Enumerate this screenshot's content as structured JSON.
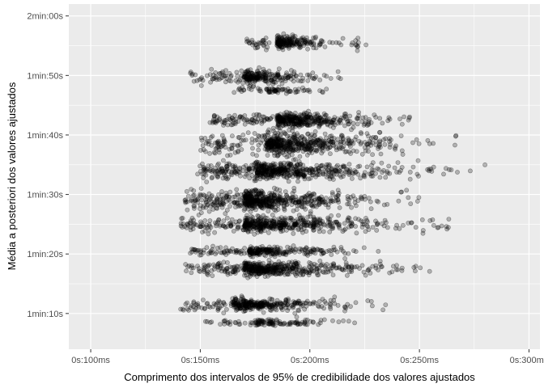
{
  "chart_data": {
    "type": "scatter",
    "title": "",
    "xlabel": "Comprimento dos intervalos de 95% de credibilidade dos valores ajustados",
    "ylabel": "Média a posteriori dos valores ajustados",
    "x_unit": "ms",
    "y_unit": "s",
    "xlim": [
      90,
      305
    ],
    "ylim": [
      64,
      122
    ],
    "x_ticks": [
      {
        "value": 100,
        "label": "0s:100ms"
      },
      {
        "value": 150,
        "label": "0s:150ms"
      },
      {
        "value": 200,
        "label": "0s:200ms"
      },
      {
        "value": 250,
        "label": "0s:250ms"
      },
      {
        "value": 300,
        "label": "0s:300ms"
      }
    ],
    "y_ticks": [
      {
        "value": 70,
        "label": "1min:10s"
      },
      {
        "value": 80,
        "label": "1min:20s"
      },
      {
        "value": 90,
        "label": "1min:30s"
      },
      {
        "value": 100,
        "label": "1min:40s"
      },
      {
        "value": 110,
        "label": "1min:50s"
      },
      {
        "value": 120,
        "label": "2min:00s"
      }
    ],
    "grid": true,
    "point_color": "#000000",
    "point_alpha": 0.25,
    "series": [
      {
        "clusters": [
          {
            "y_center": 115.5,
            "y_spread": 1.4,
            "x_min": 171,
            "x_max": 234,
            "x_peak": 185,
            "count": 220
          },
          {
            "y_center": 109.8,
            "y_spread": 1.6,
            "x_min": 144,
            "x_max": 227,
            "x_peak": 170,
            "count": 260
          },
          {
            "y_center": 107.5,
            "y_spread": 0.6,
            "x_min": 165,
            "x_max": 220,
            "x_peak": 180,
            "count": 70
          },
          {
            "y_center": 102.5,
            "y_spread": 1.4,
            "x_min": 153,
            "x_max": 260,
            "x_peak": 185,
            "count": 420
          },
          {
            "y_center": 98.5,
            "y_spread": 2.2,
            "x_min": 150,
            "x_max": 280,
            "x_peak": 180,
            "count": 560
          },
          {
            "y_center": 94,
            "y_spread": 1.8,
            "x_min": 148,
            "x_max": 296,
            "x_peak": 175,
            "count": 560
          },
          {
            "y_center": 89,
            "y_spread": 2.0,
            "x_min": 143,
            "x_max": 262,
            "x_peak": 170,
            "count": 580
          },
          {
            "y_center": 85,
            "y_spread": 1.6,
            "x_min": 141,
            "x_max": 285,
            "x_peak": 170,
            "count": 520
          },
          {
            "y_center": 80.5,
            "y_spread": 1.0,
            "x_min": 145,
            "x_max": 240,
            "x_peak": 172,
            "count": 260
          },
          {
            "y_center": 77.5,
            "y_spread": 1.5,
            "x_min": 143,
            "x_max": 271,
            "x_peak": 170,
            "count": 480
          },
          {
            "y_center": 71.5,
            "y_spread": 1.3,
            "x_min": 141,
            "x_max": 247,
            "x_peak": 165,
            "count": 340
          },
          {
            "y_center": 68.5,
            "y_spread": 0.7,
            "x_min": 150,
            "x_max": 232,
            "x_peak": 175,
            "count": 120
          }
        ]
      }
    ]
  }
}
